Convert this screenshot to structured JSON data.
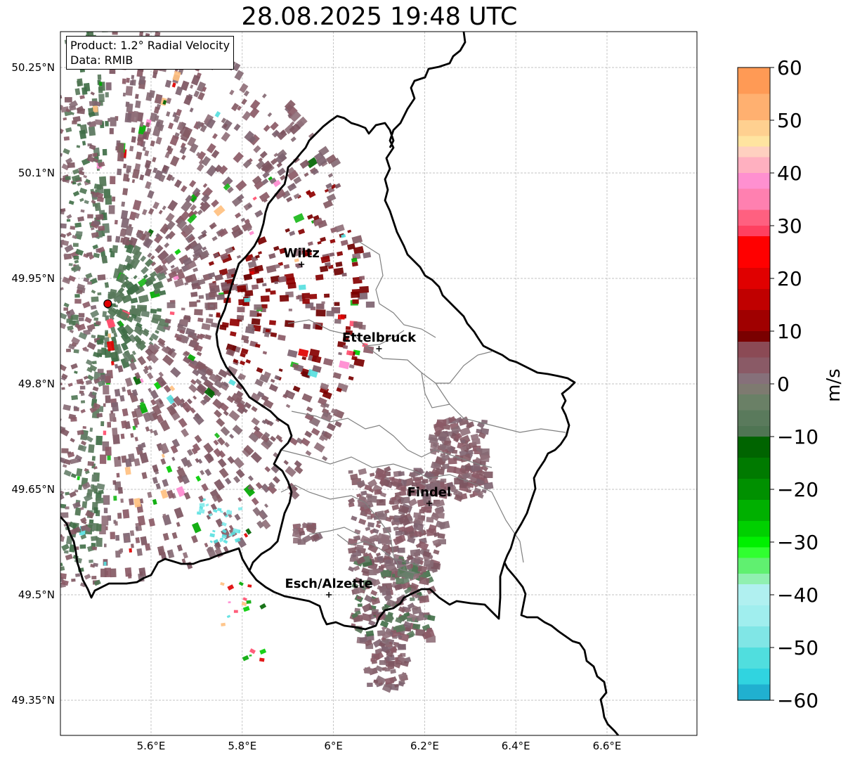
{
  "title": "28.08.2025 19:48 UTC",
  "info": {
    "product": "Product: 1.2° Radial Velocity",
    "data": "Data: RMIB"
  },
  "map": {
    "lon_range": [
      5.4,
      6.8
    ],
    "lat_range": [
      49.3,
      50.3
    ],
    "lon_ticks": [
      {
        "v": 5.6,
        "label": "5.6°E"
      },
      {
        "v": 5.8,
        "label": "5.8°E"
      },
      {
        "v": 6.0,
        "label": "6°E"
      },
      {
        "v": 6.2,
        "label": "6.2°E"
      },
      {
        "v": 6.4,
        "label": "6.4°E"
      },
      {
        "v": 6.6,
        "label": "6.6°E"
      }
    ],
    "lat_ticks": [
      {
        "v": 50.25,
        "label": "50.25°N"
      },
      {
        "v": 50.1,
        "label": "50.1°N"
      },
      {
        "v": 49.95,
        "label": "49.95°N"
      },
      {
        "v": 49.8,
        "label": "49.8°N"
      },
      {
        "v": 49.65,
        "label": "49.65°N"
      },
      {
        "v": 49.5,
        "label": "49.5°N"
      },
      {
        "v": 49.35,
        "label": "49.35°N"
      }
    ],
    "grid": true,
    "radar_site": {
      "lon": 5.505,
      "lat": 49.914
    },
    "cities": [
      {
        "name": "Wiltz",
        "lon": 5.93,
        "lat": 49.97
      },
      {
        "name": "Ettelbruck",
        "lon": 6.1,
        "lat": 49.85
      },
      {
        "name": "Findel",
        "lon": 6.21,
        "lat": 49.63
      },
      {
        "name": "Esch/Alzette",
        "lon": 5.99,
        "lat": 49.5
      }
    ]
  },
  "colorbar": {
    "label": "m/s",
    "range": [
      -60,
      60
    ],
    "ticks": [
      {
        "v": 60,
        "label": "60"
      },
      {
        "v": 50,
        "label": "50"
      },
      {
        "v": 40,
        "label": "40"
      },
      {
        "v": 30,
        "label": "30"
      },
      {
        "v": 20,
        "label": "20"
      },
      {
        "v": 10,
        "label": "10"
      },
      {
        "v": 0,
        "label": "0"
      },
      {
        "v": -10,
        "label": "−10"
      },
      {
        "v": -20,
        "label": "−20"
      },
      {
        "v": -30,
        "label": "−30"
      },
      {
        "v": -40,
        "label": "−40"
      },
      {
        "v": -50,
        "label": "−50"
      },
      {
        "v": -60,
        "label": "−60"
      }
    ]
  }
}
